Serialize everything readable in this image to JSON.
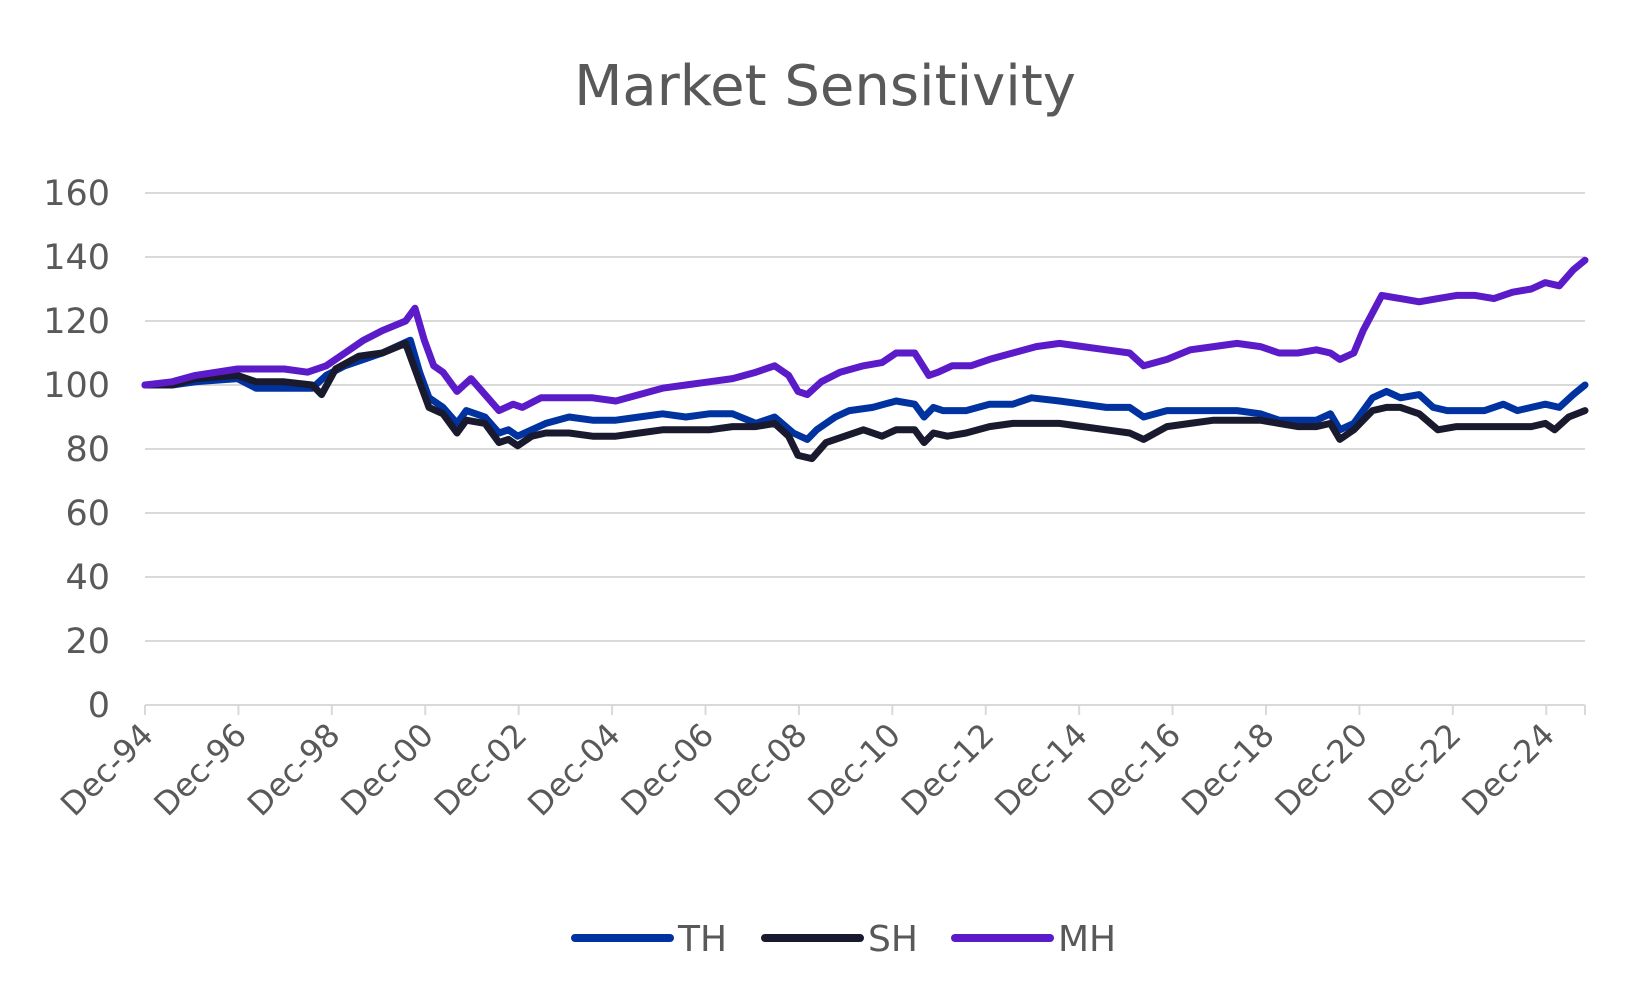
{
  "chart_data": {
    "type": "line",
    "title": "Market Sensitivity",
    "xlabel": "",
    "ylabel": "",
    "ylim": [
      0,
      160
    ],
    "yticks": [
      0,
      20,
      40,
      60,
      80,
      100,
      120,
      140,
      160
    ],
    "xlim": [
      1994.92,
      2025.75
    ],
    "xtick_labels": [
      "Dec-94",
      "Dec-96",
      "Dec-98",
      "Dec-00",
      "Dec-02",
      "Dec-04",
      "Dec-06",
      "Dec-08",
      "Dec-10",
      "Dec-12",
      "Dec-14",
      "Dec-16",
      "Dec-18",
      "Dec-20",
      "Dec-22",
      "Dec-24"
    ],
    "xtick_positions": [
      1994.92,
      1996.92,
      1998.92,
      2000.92,
      2002.92,
      2004.92,
      2006.92,
      2008.92,
      2010.92,
      2012.92,
      2014.92,
      2016.92,
      2018.92,
      2020.92,
      2022.92,
      2024.92
    ],
    "grid": true,
    "legend_position": "bottom",
    "series": [
      {
        "name": "TH",
        "color": "#0033a0",
        "points": [
          [
            1994.92,
            100
          ],
          [
            1995.5,
            100
          ],
          [
            1996.0,
            101
          ],
          [
            1996.9,
            102
          ],
          [
            1997.3,
            99
          ],
          [
            1997.9,
            99
          ],
          [
            1998.5,
            99
          ],
          [
            1998.8,
            103
          ],
          [
            1999.2,
            106
          ],
          [
            1999.6,
            108
          ],
          [
            2000.0,
            110
          ],
          [
            2000.6,
            114
          ],
          [
            2000.8,
            104
          ],
          [
            2001.0,
            96
          ],
          [
            2001.3,
            93
          ],
          [
            2001.6,
            88
          ],
          [
            2001.8,
            92
          ],
          [
            2002.2,
            90
          ],
          [
            2002.5,
            85
          ],
          [
            2002.7,
            86
          ],
          [
            2002.9,
            84
          ],
          [
            2003.2,
            86
          ],
          [
            2003.5,
            88
          ],
          [
            2004.0,
            90
          ],
          [
            2004.5,
            89
          ],
          [
            2005.0,
            89
          ],
          [
            2005.5,
            90
          ],
          [
            2006.0,
            91
          ],
          [
            2006.5,
            90
          ],
          [
            2007.0,
            91
          ],
          [
            2007.5,
            91
          ],
          [
            2008.0,
            88
          ],
          [
            2008.4,
            90
          ],
          [
            2008.8,
            85
          ],
          [
            2009.1,
            83
          ],
          [
            2009.3,
            86
          ],
          [
            2009.7,
            90
          ],
          [
            2010.0,
            92
          ],
          [
            2010.5,
            93
          ],
          [
            2011.0,
            95
          ],
          [
            2011.4,
            94
          ],
          [
            2011.6,
            90
          ],
          [
            2011.8,
            93
          ],
          [
            2012.0,
            92
          ],
          [
            2012.5,
            92
          ],
          [
            2013.0,
            94
          ],
          [
            2013.5,
            94
          ],
          [
            2013.9,
            96
          ],
          [
            2014.5,
            95
          ],
          [
            2015.0,
            94
          ],
          [
            2015.5,
            93
          ],
          [
            2016.0,
            93
          ],
          [
            2016.3,
            90
          ],
          [
            2016.8,
            92
          ],
          [
            2017.3,
            92
          ],
          [
            2017.8,
            92
          ],
          [
            2018.3,
            92
          ],
          [
            2018.8,
            91
          ],
          [
            2019.2,
            89
          ],
          [
            2019.6,
            89
          ],
          [
            2020.0,
            89
          ],
          [
            2020.3,
            91
          ],
          [
            2020.5,
            86
          ],
          [
            2020.8,
            88
          ],
          [
            2021.2,
            96
          ],
          [
            2021.5,
            98
          ],
          [
            2021.8,
            96
          ],
          [
            2022.2,
            97
          ],
          [
            2022.5,
            93
          ],
          [
            2022.8,
            92
          ],
          [
            2023.2,
            92
          ],
          [
            2023.6,
            92
          ],
          [
            2024.0,
            94
          ],
          [
            2024.3,
            92
          ],
          [
            2024.6,
            93
          ],
          [
            2024.9,
            94
          ],
          [
            2025.2,
            93
          ],
          [
            2025.5,
            97
          ],
          [
            2025.75,
            100
          ]
        ]
      },
      {
        "name": "SH",
        "color": "#1a1a2e",
        "points": [
          [
            1994.92,
            100
          ],
          [
            1995.5,
            100
          ],
          [
            1996.0,
            102
          ],
          [
            1996.9,
            103
          ],
          [
            1997.3,
            101
          ],
          [
            1997.9,
            101
          ],
          [
            1998.5,
            100
          ],
          [
            1998.7,
            97
          ],
          [
            1999.0,
            105
          ],
          [
            1999.5,
            109
          ],
          [
            2000.0,
            110
          ],
          [
            2000.5,
            113
          ],
          [
            2000.8,
            101
          ],
          [
            2001.0,
            93
          ],
          [
            2001.3,
            91
          ],
          [
            2001.6,
            85
          ],
          [
            2001.8,
            89
          ],
          [
            2002.2,
            88
          ],
          [
            2002.5,
            82
          ],
          [
            2002.7,
            83
          ],
          [
            2002.9,
            81
          ],
          [
            2003.2,
            84
          ],
          [
            2003.5,
            85
          ],
          [
            2004.0,
            85
          ],
          [
            2004.5,
            84
          ],
          [
            2005.0,
            84
          ],
          [
            2005.5,
            85
          ],
          [
            2006.0,
            86
          ],
          [
            2006.5,
            86
          ],
          [
            2007.0,
            86
          ],
          [
            2007.5,
            87
          ],
          [
            2008.0,
            87
          ],
          [
            2008.4,
            88
          ],
          [
            2008.7,
            84
          ],
          [
            2008.9,
            78
          ],
          [
            2009.2,
            77
          ],
          [
            2009.5,
            82
          ],
          [
            2009.9,
            84
          ],
          [
            2010.3,
            86
          ],
          [
            2010.7,
            84
          ],
          [
            2011.0,
            86
          ],
          [
            2011.4,
            86
          ],
          [
            2011.6,
            82
          ],
          [
            2011.8,
            85
          ],
          [
            2012.1,
            84
          ],
          [
            2012.5,
            85
          ],
          [
            2013.0,
            87
          ],
          [
            2013.5,
            88
          ],
          [
            2014.0,
            88
          ],
          [
            2014.5,
            88
          ],
          [
            2015.0,
            87
          ],
          [
            2015.5,
            86
          ],
          [
            2016.0,
            85
          ],
          [
            2016.3,
            83
          ],
          [
            2016.8,
            87
          ],
          [
            2017.3,
            88
          ],
          [
            2017.8,
            89
          ],
          [
            2018.3,
            89
          ],
          [
            2018.8,
            89
          ],
          [
            2019.2,
            88
          ],
          [
            2019.6,
            87
          ],
          [
            2020.0,
            87
          ],
          [
            2020.3,
            88
          ],
          [
            2020.5,
            83
          ],
          [
            2020.8,
            86
          ],
          [
            2021.2,
            92
          ],
          [
            2021.5,
            93
          ],
          [
            2021.8,
            93
          ],
          [
            2022.2,
            91
          ],
          [
            2022.6,
            86
          ],
          [
            2023.0,
            87
          ],
          [
            2023.4,
            87
          ],
          [
            2023.8,
            87
          ],
          [
            2024.2,
            87
          ],
          [
            2024.6,
            87
          ],
          [
            2024.9,
            88
          ],
          [
            2025.1,
            86
          ],
          [
            2025.4,
            90
          ],
          [
            2025.75,
            92
          ]
        ]
      },
      {
        "name": "MH",
        "color": "#5b1bc9",
        "points": [
          [
            1994.92,
            100
          ],
          [
            1995.5,
            101
          ],
          [
            1996.0,
            103
          ],
          [
            1996.9,
            105
          ],
          [
            1997.5,
            105
          ],
          [
            1997.9,
            105
          ],
          [
            1998.4,
            104
          ],
          [
            1998.8,
            106
          ],
          [
            1999.2,
            110
          ],
          [
            1999.6,
            114
          ],
          [
            2000.0,
            117
          ],
          [
            2000.5,
            120
          ],
          [
            2000.7,
            124
          ],
          [
            2000.9,
            114
          ],
          [
            2001.1,
            106
          ],
          [
            2001.3,
            104
          ],
          [
            2001.6,
            98
          ],
          [
            2001.9,
            102
          ],
          [
            2002.2,
            97
          ],
          [
            2002.5,
            92
          ],
          [
            2002.8,
            94
          ],
          [
            2003.0,
            93
          ],
          [
            2003.4,
            96
          ],
          [
            2004.0,
            96
          ],
          [
            2004.5,
            96
          ],
          [
            2005.0,
            95
          ],
          [
            2005.5,
            97
          ],
          [
            2006.0,
            99
          ],
          [
            2006.5,
            100
          ],
          [
            2007.0,
            101
          ],
          [
            2007.5,
            102
          ],
          [
            2008.0,
            104
          ],
          [
            2008.4,
            106
          ],
          [
            2008.7,
            103
          ],
          [
            2008.9,
            98
          ],
          [
            2009.1,
            97
          ],
          [
            2009.4,
            101
          ],
          [
            2009.8,
            104
          ],
          [
            2010.3,
            106
          ],
          [
            2010.7,
            107
          ],
          [
            2011.0,
            110
          ],
          [
            2011.4,
            110
          ],
          [
            2011.7,
            103
          ],
          [
            2011.9,
            104
          ],
          [
            2012.2,
            106
          ],
          [
            2012.6,
            106
          ],
          [
            2013.0,
            108
          ],
          [
            2013.5,
            110
          ],
          [
            2014.0,
            112
          ],
          [
            2014.5,
            113
          ],
          [
            2015.0,
            112
          ],
          [
            2015.5,
            111
          ],
          [
            2016.0,
            110
          ],
          [
            2016.3,
            106
          ],
          [
            2016.8,
            108
          ],
          [
            2017.3,
            111
          ],
          [
            2017.8,
            112
          ],
          [
            2018.3,
            113
          ],
          [
            2018.8,
            112
          ],
          [
            2019.2,
            110
          ],
          [
            2019.6,
            110
          ],
          [
            2020.0,
            111
          ],
          [
            2020.3,
            110
          ],
          [
            2020.5,
            108
          ],
          [
            2020.8,
            110
          ],
          [
            2021.0,
            117
          ],
          [
            2021.4,
            128
          ],
          [
            2021.8,
            127
          ],
          [
            2022.2,
            126
          ],
          [
            2022.6,
            127
          ],
          [
            2023.0,
            128
          ],
          [
            2023.4,
            128
          ],
          [
            2023.8,
            127
          ],
          [
            2024.2,
            129
          ],
          [
            2024.6,
            130
          ],
          [
            2024.9,
            132
          ],
          [
            2025.2,
            131
          ],
          [
            2025.5,
            136
          ],
          [
            2025.75,
            139
          ]
        ]
      }
    ]
  }
}
